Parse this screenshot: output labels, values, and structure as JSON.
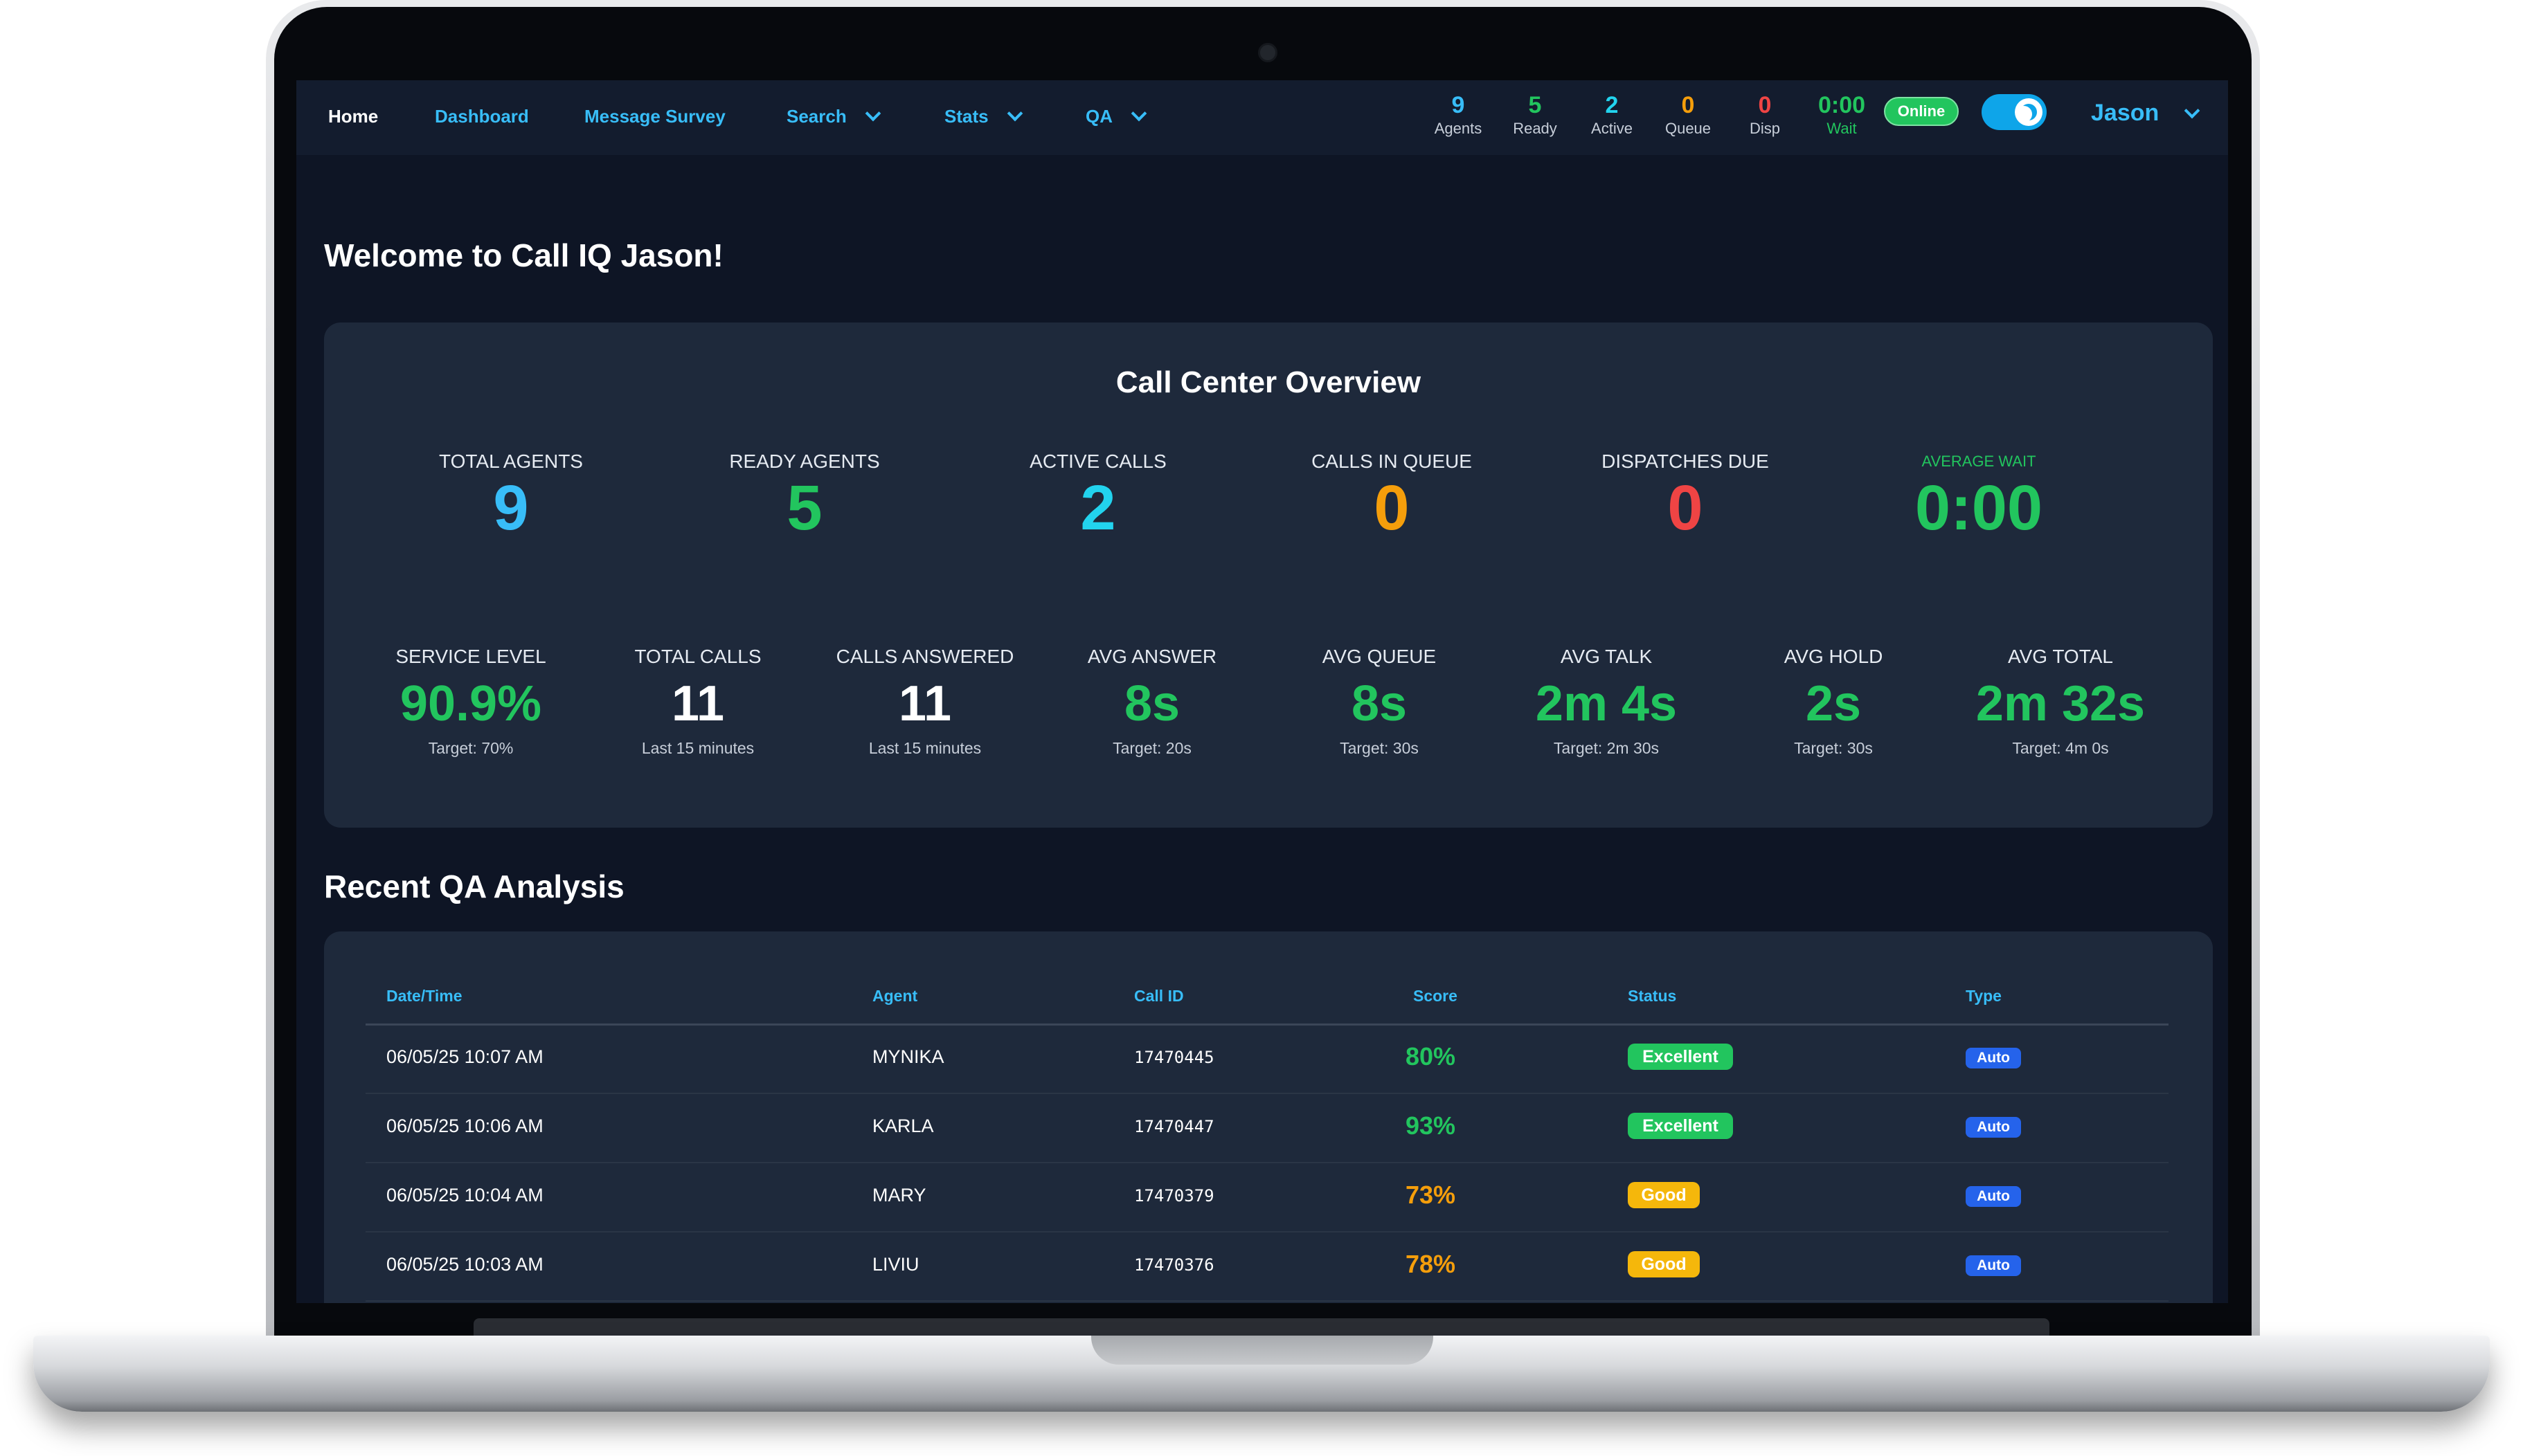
{
  "nav": {
    "home": "Home",
    "dashboard": "Dashboard",
    "message_survey": "Message Survey",
    "search": "Search",
    "stats": "Stats",
    "qa": "QA"
  },
  "status_bar": {
    "agents": {
      "value": "9",
      "label": "Agents",
      "color": "#38bdf8"
    },
    "ready": {
      "value": "5",
      "label": "Ready",
      "color": "#22c55e"
    },
    "active": {
      "value": "2",
      "label": "Active",
      "color": "#22d3ee"
    },
    "queue": {
      "value": "0",
      "label": "Queue",
      "color": "#f59e0b"
    },
    "disp": {
      "value": "0",
      "label": "Disp",
      "color": "#ef4444"
    },
    "wait": {
      "value": "0:00",
      "label": "Wait",
      "color": "#22c55e"
    },
    "online_label": "Online",
    "user_name": "Jason"
  },
  "welcome": "Welcome to Call IQ Jason!",
  "overview": {
    "title": "Call Center Overview",
    "top": [
      {
        "label": "TOTAL AGENTS",
        "value": "9",
        "color": "#38bdf8"
      },
      {
        "label": "READY AGENTS",
        "value": "5",
        "color": "#22c55e"
      },
      {
        "label": "ACTIVE CALLS",
        "value": "2",
        "color": "#22d3ee"
      },
      {
        "label": "CALLS IN QUEUE",
        "value": "0",
        "color": "#f59e0b"
      },
      {
        "label": "DISPATCHES DUE",
        "value": "0",
        "color": "#ef4444"
      },
      {
        "label": "AVERAGE WAIT",
        "value": "0:00",
        "color": "#22c55e"
      }
    ],
    "bottom": [
      {
        "label": "SERVICE LEVEL",
        "value": "90.9%",
        "sub": "Target: 70%",
        "color": "#22c55e"
      },
      {
        "label": "TOTAL CALLS",
        "value": "11",
        "sub": "Last 15 minutes",
        "color": "#ffffff"
      },
      {
        "label": "CALLS ANSWERED",
        "value": "11",
        "sub": "Last 15 minutes",
        "color": "#ffffff"
      },
      {
        "label": "AVG ANSWER",
        "value": "8s",
        "sub": "Target: 20s",
        "color": "#22c55e"
      },
      {
        "label": "AVG QUEUE",
        "value": "8s",
        "sub": "Target: 30s",
        "color": "#22c55e"
      },
      {
        "label": "AVG TALK",
        "value": "2m 4s",
        "sub": "Target: 2m 30s",
        "color": "#22c55e"
      },
      {
        "label": "AVG HOLD",
        "value": "2s",
        "sub": "Target: 30s",
        "color": "#22c55e"
      },
      {
        "label": "AVG TOTAL",
        "value": "2m 32s",
        "sub": "Target: 4m 0s",
        "color": "#22c55e"
      }
    ]
  },
  "qa": {
    "title": "Recent QA Analysis",
    "columns": [
      "Date/Time",
      "Agent",
      "Call ID",
      "Score",
      "Status",
      "Type"
    ],
    "rows": [
      {
        "datetime": "06/05/25 10:07 AM",
        "agent": "MYNIKA",
        "call_id": "17470445",
        "score": "80%",
        "score_color": "#22c55e",
        "status": "Excellent",
        "status_color": "#22c55e",
        "type": "Auto"
      },
      {
        "datetime": "06/05/25 10:06 AM",
        "agent": "KARLA",
        "call_id": "17470447",
        "score": "93%",
        "score_color": "#22c55e",
        "status": "Excellent",
        "status_color": "#22c55e",
        "type": "Auto"
      },
      {
        "datetime": "06/05/25 10:04 AM",
        "agent": "MARY",
        "call_id": "17470379",
        "score": "73%",
        "score_color": "#f59e0b",
        "status": "Good",
        "status_color": "#f5b70b",
        "type": "Auto"
      },
      {
        "datetime": "06/05/25 10:03 AM",
        "agent": "LIVIU",
        "call_id": "17470376",
        "score": "78%",
        "score_color": "#f59e0b",
        "status": "Good",
        "status_color": "#f5b70b",
        "type": "Auto"
      }
    ]
  }
}
